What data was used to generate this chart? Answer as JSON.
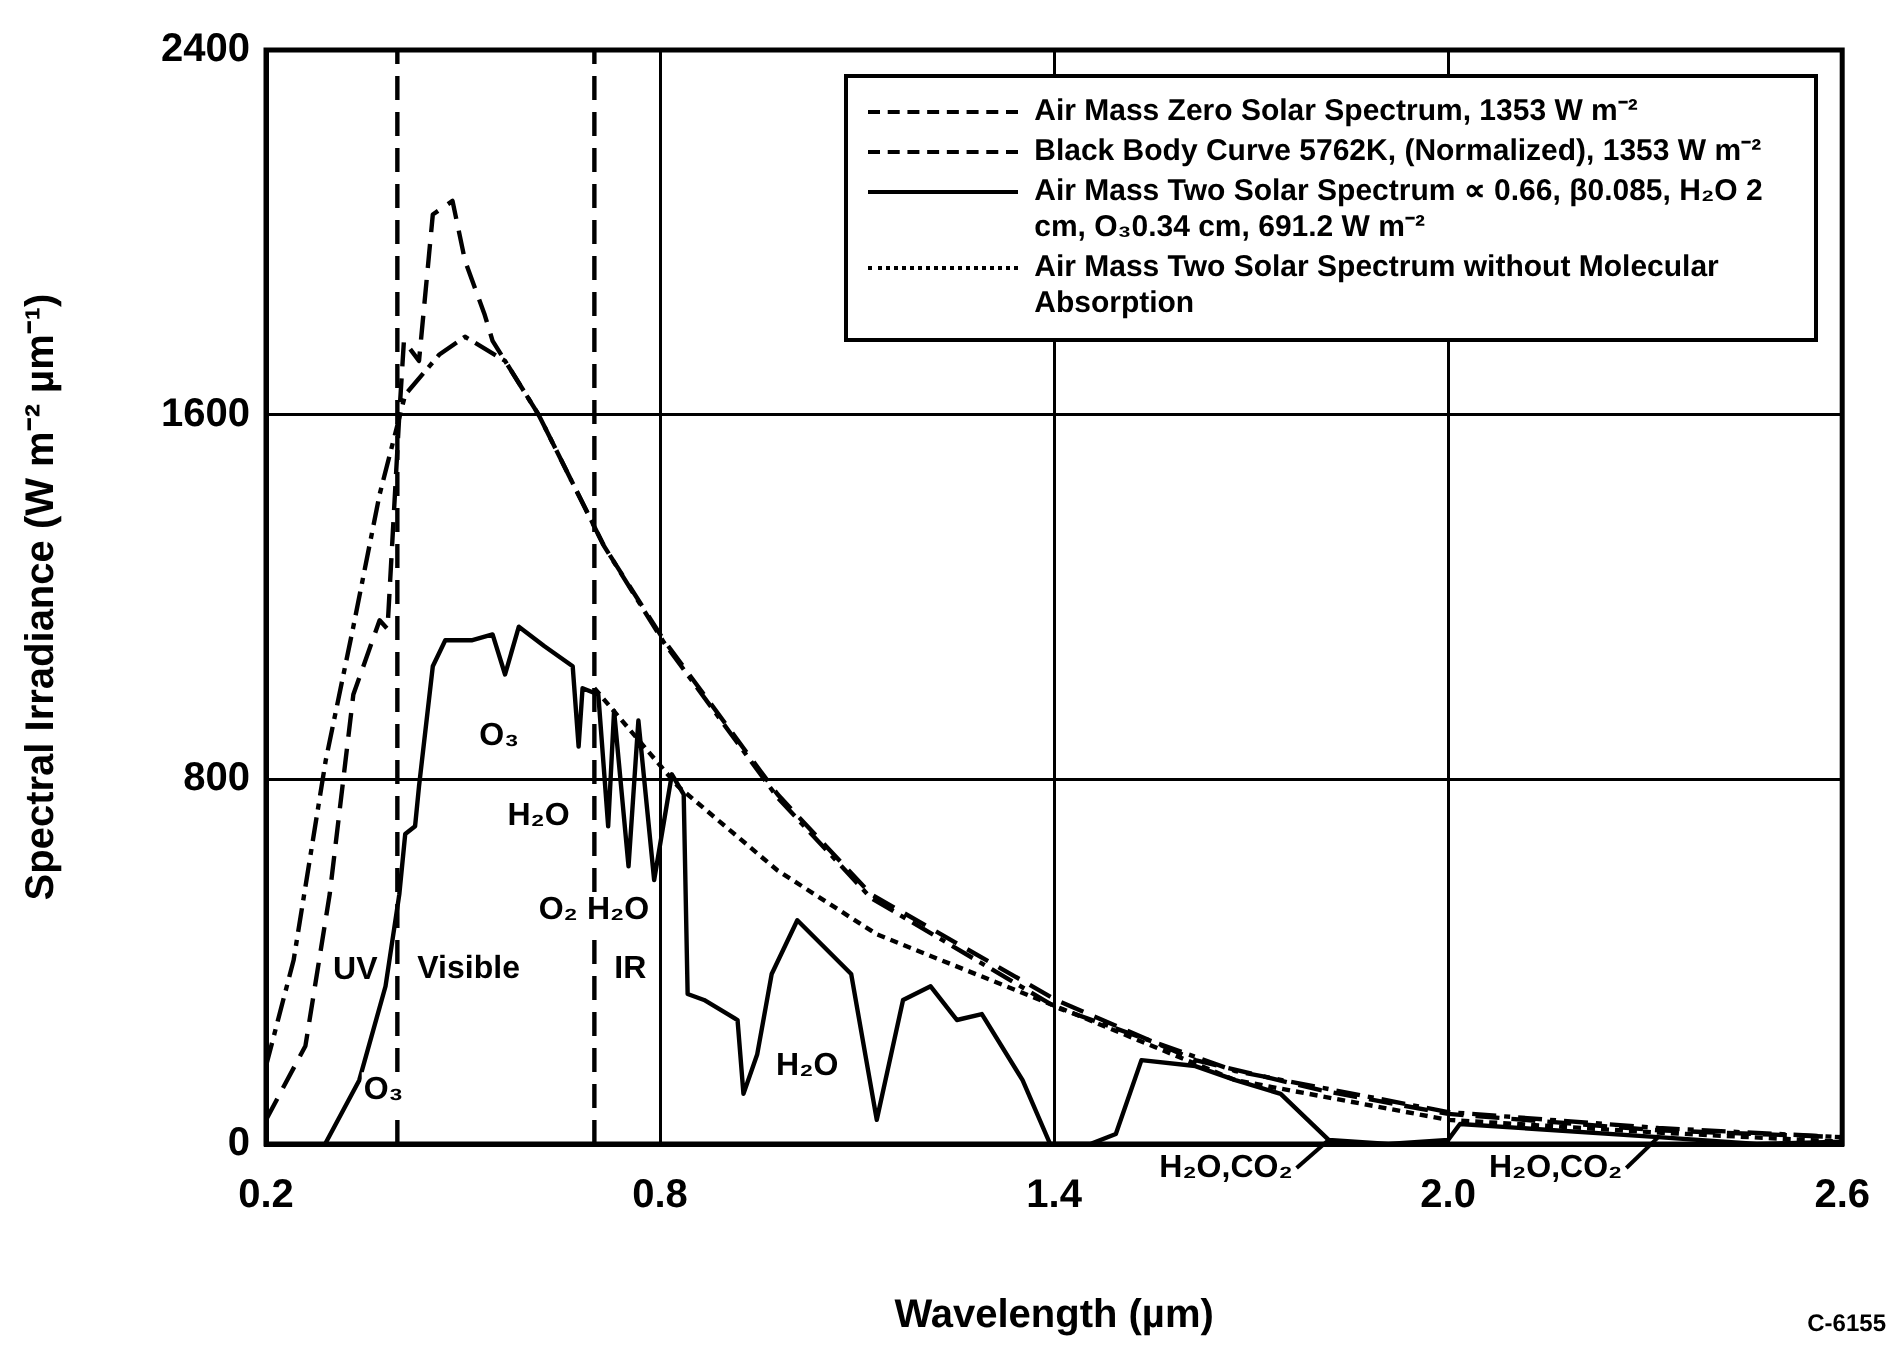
{
  "chart_data": {
    "type": "line",
    "xlabel": "Wavelength (µm)",
    "ylabel": "Spectral Irradiance (W m⁻² µm⁻¹)",
    "xlim": [
      0.2,
      2.6
    ],
    "xticks": [
      0.2,
      0.8,
      1.4,
      {
        "value": 2.0,
        "label": "2.0"
      },
      2.6
    ],
    "ylim": [
      0,
      2400
    ],
    "yticks": [
      0,
      800,
      1600,
      2400
    ],
    "grid": true,
    "legend": "top right",
    "marker": "none",
    "series": [
      {
        "name": "Air Mass Zero Solar Spectrum, 1353 W m⁻²",
        "color": "#000000",
        "line_style": "dashed",
        "x": [
          0.2,
          0.26,
          0.297,
          0.333,
          0.373,
          0.385,
          0.403,
          0.41,
          0.433,
          0.454,
          0.484,
          0.503,
          0.533,
          0.545,
          0.615,
          0.715,
          0.806,
          0.979,
          1.121,
          1.403,
          1.615,
          1.806,
          2.0,
          2.32,
          2.6
        ],
        "values": [
          53,
          215,
          548,
          986,
          1149,
          1130,
          1600,
          1762,
          1718,
          2039,
          2069,
          1938,
          1819,
          1762,
          1600,
          1311,
          1105,
          767,
          548,
          316,
          184,
          118,
          66,
          30,
          15
        ]
      },
      {
        "name": "Black Body Curve 5762K, (Normalized), 1353 W m⁻²",
        "color": "#000000",
        "line_style": "dashdot",
        "x": [
          0.2,
          0.242,
          0.291,
          0.333,
          0.373,
          0.412,
          0.464,
          0.503,
          0.564,
          0.615,
          0.715,
          0.806,
          0.979,
          1.121,
          1.403,
          1.676,
          2.0,
          2.32,
          2.6
        ],
        "values": [
          171,
          403,
          842,
          1135,
          1425,
          1644,
          1732,
          1771,
          1718,
          1600,
          1311,
          1100,
          760,
          540,
          300,
          160,
          70,
          35,
          15
        ]
      },
      {
        "name": "Air Mass Two Solar Spectrum ∝ 0.66, β0.085, H₂O 2 cm, O₃0.34 cm, 691.2 W m⁻²",
        "color": "#000000",
        "line_style": "solid",
        "x": [
          0.29,
          0.342,
          0.382,
          0.403,
          0.412,
          0.427,
          0.433,
          0.454,
          0.473,
          0.513,
          0.545,
          0.564,
          0.585,
          0.624,
          0.667,
          0.676,
          0.682,
          0.706,
          0.721,
          0.73,
          0.752,
          0.767,
          0.791,
          0.818,
          0.836,
          0.842,
          0.867,
          0.918,
          0.927,
          0.948,
          0.97,
          1.009,
          1.091,
          1.13,
          1.17,
          1.212,
          1.252,
          1.29,
          1.352,
          1.394,
          1.455,
          1.494,
          1.533,
          1.615,
          1.676,
          1.745,
          1.818,
          1.909,
          2.0,
          2.018,
          2.32,
          2.47,
          2.6
        ],
        "values": [
          0,
          140,
          346,
          548,
          680,
          697,
          785,
          1048,
          1105,
          1105,
          1118,
          1030,
          1135,
          1092,
          1048,
          872,
          1000,
          986,
          697,
          950,
          609,
          929,
          579,
          811,
          767,
          329,
          316,
          272,
          110,
          197,
          373,
          491,
          373,
          53,
          316,
          346,
          272,
          285,
          140,
          0,
          0,
          22,
          184,
          171,
          140,
          110,
          9,
          0,
          9,
          44,
          15,
          0,
          5
        ]
      },
      {
        "name": "Air Mass Two Solar Spectrum without Molecular Absorption",
        "color": "#000000",
        "line_style": "dotted",
        "x": [
          0.7,
          0.827,
          0.979,
          1.13,
          1.403,
          1.676,
          2.0,
          2.32,
          2.6
        ],
        "values": [
          1000,
          785,
          600,
          460,
          302,
          140,
          53,
          25,
          5
        ]
      }
    ],
    "ref_lines": [
      {
        "axis": "x",
        "value": 0.4,
        "line_style": "dashed",
        "label": "Visible"
      },
      {
        "axis": "x",
        "value": 0.7,
        "line_style": "dashed",
        "label": "IR"
      }
    ],
    "annotations": [
      {
        "text": "UV",
        "x": 0.336,
        "y": 381
      },
      {
        "text": "O₃",
        "x": 0.379,
        "y": 118
      },
      {
        "text": "O₃",
        "x": 0.555,
        "y": 894
      },
      {
        "text": "H₂O",
        "x": 0.615,
        "y": 719
      },
      {
        "text": "O₂",
        "x": 0.645,
        "y": 513
      },
      {
        "text": "H₂O",
        "x": 0.736,
        "y": 513
      },
      {
        "text": "H₂O",
        "x": 1.024,
        "y": 171
      },
      {
        "text": "H₂O,CO₂",
        "x": 1.818,
        "y": 9
      },
      {
        "text": "H₂O,CO₂",
        "x": 2.32,
        "y": 15
      },
      "C-6155"
    ]
  }
}
